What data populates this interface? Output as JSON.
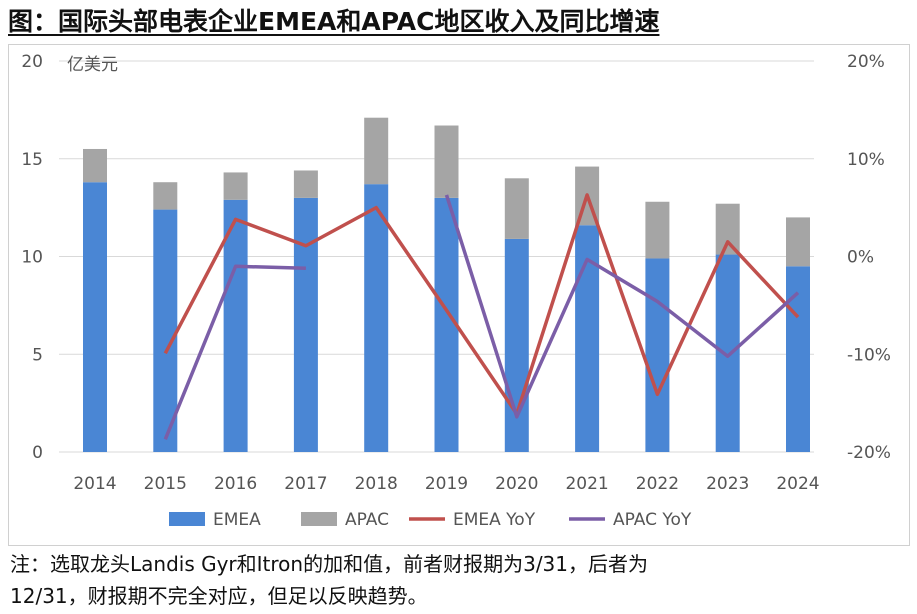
{
  "title": "图：国际头部电表企业EMEA和APAC地区收入及同比增速",
  "note_line1": "注：选取龙头Landis Gyr和Itron的加和值，前者财报期为3/31，后者为",
  "note_line2": "12/31，财报期不完全对应，但足以反映趋势。",
  "chart_data": {
    "type": "bar+line",
    "unit_label": "亿美元",
    "categories": [
      "2014",
      "2015",
      "2016",
      "2017",
      "2018",
      "2019",
      "2020",
      "2021",
      "2022",
      "2023",
      "2024"
    ],
    "left_axis": {
      "range": [
        0,
        20
      ],
      "ticks": [
        "0",
        "5",
        "10",
        "15",
        "20"
      ]
    },
    "right_axis": {
      "range": [
        -20,
        20
      ],
      "ticks": [
        "-20%",
        "-10%",
        "0%",
        "10%",
        "20%"
      ]
    },
    "series": [
      {
        "name": "EMEA",
        "type": "bar",
        "stack": true,
        "color": "#4a86d4",
        "values": [
          13.8,
          12.4,
          12.9,
          13.0,
          13.7,
          13.0,
          10.9,
          11.6,
          9.9,
          10.1,
          9.5
        ]
      },
      {
        "name": "APAC",
        "type": "bar",
        "stack": true,
        "color": "#a5a5a5",
        "values": [
          1.7,
          1.4,
          1.4,
          1.4,
          3.4,
          3.7,
          3.1,
          3.0,
          2.9,
          2.6,
          2.5
        ]
      },
      {
        "name": "EMEA YoY",
        "type": "line",
        "axis": "right",
        "color": "#c0504d",
        "values": [
          null,
          -9.9,
          3.8,
          1.1,
          5.0,
          -5.5,
          -16.1,
          6.3,
          -14.1,
          1.5,
          -6.2
        ]
      },
      {
        "name": "APAC YoY",
        "type": "line",
        "axis": "right",
        "color": "#7b5ea7",
        "values": [
          null,
          -18.7,
          -1.0,
          -1.2,
          null,
          6.3,
          -16.4,
          -0.3,
          -4.6,
          -10.2,
          -3.7
        ]
      }
    ],
    "legend_position": "bottom",
    "grid": true
  }
}
